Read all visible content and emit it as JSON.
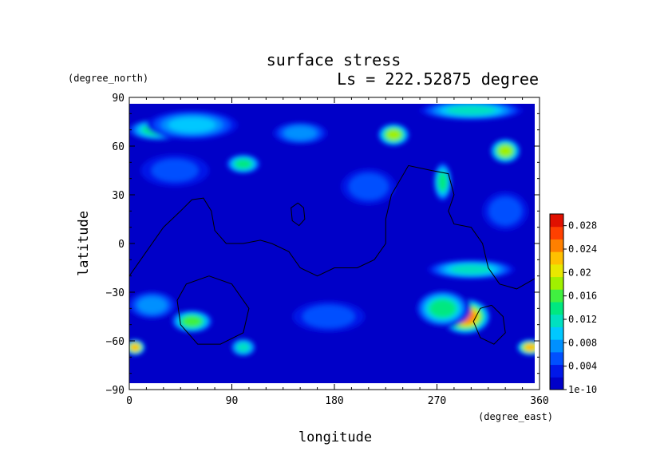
{
  "chart_data": {
    "type": "heatmap",
    "title": "surface stress",
    "subtitle": "Ls = 222.52875 degree",
    "xlabel": "longitude",
    "ylabel": "latitude",
    "x_unit": "(degree_east)",
    "y_unit": "(degree_north)",
    "xlim": [
      0,
      360
    ],
    "ylim": [
      -90,
      90
    ],
    "x_ticks": [
      {
        "value": 0,
        "label": "0"
      },
      {
        "value": 90,
        "label": "90"
      },
      {
        "value": 180,
        "label": "180"
      },
      {
        "value": 270,
        "label": "270"
      },
      {
        "value": 360,
        "label": "360"
      }
    ],
    "y_ticks": [
      {
        "value": 90,
        "label": "90"
      },
      {
        "value": 60,
        "label": "60"
      },
      {
        "value": 30,
        "label": "30"
      },
      {
        "value": 0,
        "label": "0"
      },
      {
        "value": -30,
        "label": "−30"
      },
      {
        "value": -60,
        "label": "−60"
      },
      {
        "value": -90,
        "label": "−90"
      }
    ],
    "colorbar": {
      "range": [
        0,
        0.03
      ],
      "labels": [
        "0.028",
        "0.024",
        "0.02",
        "0.016",
        "0.012",
        "0.008",
        "0.004",
        "1e-10"
      ],
      "label_values": [
        0.028,
        0.024,
        0.02,
        0.016,
        0.012,
        0.008,
        0.004,
        0
      ],
      "colors": [
        "#0000c8",
        "#0018e8",
        "#0050ff",
        "#0090ff",
        "#00c8ff",
        "#00e0c0",
        "#00e880",
        "#40f040",
        "#a0f000",
        "#e8e800",
        "#ffc000",
        "#ff8000",
        "#ff4000",
        "#e01000"
      ]
    },
    "hotspots": [
      {
        "lon": 25,
        "lat": 70,
        "value": 0.014,
        "rx": 28,
        "ry": 7
      },
      {
        "lon": 55,
        "lat": 73,
        "value": 0.009,
        "rx": 40,
        "ry": 9
      },
      {
        "lon": 100,
        "lat": 49,
        "value": 0.013,
        "rx": 15,
        "ry": 6
      },
      {
        "lon": 150,
        "lat": 68,
        "value": 0.008,
        "rx": 28,
        "ry": 8
      },
      {
        "lon": 232,
        "lat": 67,
        "value": 0.018,
        "rx": 14,
        "ry": 7
      },
      {
        "lon": 300,
        "lat": 82,
        "value": 0.011,
        "rx": 45,
        "ry": 6
      },
      {
        "lon": 330,
        "lat": 57,
        "value": 0.019,
        "rx": 14,
        "ry": 8
      },
      {
        "lon": 275,
        "lat": 38,
        "value": 0.013,
        "rx": 8,
        "ry": 12
      },
      {
        "lon": 210,
        "lat": 35,
        "value": 0.006,
        "rx": 30,
        "ry": 14
      },
      {
        "lon": 300,
        "lat": -16,
        "value": 0.011,
        "rx": 38,
        "ry": 6
      },
      {
        "lon": 295,
        "lat": -45,
        "value": 0.024,
        "rx": 22,
        "ry": 11
      },
      {
        "lon": 275,
        "lat": -40,
        "value": 0.014,
        "rx": 25,
        "ry": 12
      },
      {
        "lon": 55,
        "lat": -48,
        "value": 0.015,
        "rx": 18,
        "ry": 7
      },
      {
        "lon": 20,
        "lat": -38,
        "value": 0.008,
        "rx": 25,
        "ry": 10
      },
      {
        "lon": 100,
        "lat": -64,
        "value": 0.012,
        "rx": 12,
        "ry": 6
      },
      {
        "lon": 5,
        "lat": -64,
        "value": 0.022,
        "rx": 9,
        "ry": 5
      },
      {
        "lon": 352,
        "lat": -64,
        "value": 0.022,
        "rx": 12,
        "ry": 5
      },
      {
        "lon": 175,
        "lat": -45,
        "value": 0.006,
        "rx": 40,
        "ry": 12
      },
      {
        "lon": 330,
        "lat": 20,
        "value": 0.006,
        "rx": 25,
        "ry": 15
      },
      {
        "lon": 40,
        "lat": 45,
        "value": 0.005,
        "rx": 30,
        "ry": 10
      }
    ],
    "contours": [
      [
        [
          0,
          -20
        ],
        [
          15,
          -5
        ],
        [
          30,
          10
        ],
        [
          45,
          20
        ],
        [
          55,
          27
        ],
        [
          65,
          28
        ],
        [
          72,
          20
        ],
        [
          75,
          8
        ],
        [
          85,
          0
        ],
        [
          100,
          0
        ],
        [
          115,
          2
        ],
        [
          125,
          0
        ],
        [
          140,
          -5
        ],
        [
          150,
          -15
        ],
        [
          165,
          -20
        ],
        [
          180,
          -15
        ],
        [
          200,
          -15
        ],
        [
          215,
          -10
        ],
        [
          225,
          0
        ],
        [
          225,
          15
        ],
        [
          230,
          30
        ],
        [
          245,
          48
        ],
        [
          265,
          45
        ],
        [
          280,
          43
        ],
        [
          285,
          30
        ],
        [
          280,
          20
        ],
        [
          285,
          12
        ],
        [
          300,
          10
        ],
        [
          310,
          0
        ],
        [
          315,
          -15
        ],
        [
          325,
          -25
        ],
        [
          340,
          -28
        ],
        [
          355,
          -22
        ],
        [
          360,
          -20
        ]
      ],
      [
        [
          70,
          -20
        ],
        [
          90,
          -25
        ],
        [
          105,
          -40
        ],
        [
          100,
          -55
        ],
        [
          80,
          -62
        ],
        [
          60,
          -62
        ],
        [
          45,
          -50
        ],
        [
          42,
          -35
        ],
        [
          50,
          -25
        ],
        [
          70,
          -20
        ]
      ],
      [
        [
          318,
          -38
        ],
        [
          328,
          -45
        ],
        [
          330,
          -55
        ],
        [
          320,
          -62
        ],
        [
          308,
          -58
        ],
        [
          302,
          -48
        ],
        [
          308,
          -40
        ],
        [
          318,
          -38
        ]
      ],
      [
        [
          148,
          25
        ],
        [
          153,
          22
        ],
        [
          154,
          15
        ],
        [
          149,
          11
        ],
        [
          143,
          14
        ],
        [
          142,
          22
        ],
        [
          148,
          25
        ]
      ]
    ]
  }
}
